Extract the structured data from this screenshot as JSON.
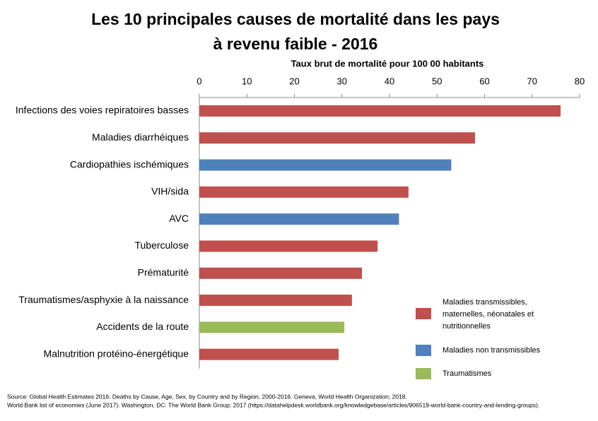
{
  "chart_data": {
    "type": "bar",
    "orientation": "horizontal",
    "title": [
      "Les 10 principales causes de mortalité dans les pays",
      "à revenu faible - 2016"
    ],
    "x_label": "Taux brut de mortalité pour 100 00 habitants",
    "categories": [
      "Infections des voies repiratoires basses",
      "Maladies diarrhéiques",
      "Cardiopathies ischémiques",
      "VIH/sida",
      "AVC",
      "Tuberculose",
      "Prématurité",
      "Traumatismes/asphyxie à la naissance",
      "Accidents de la route",
      "Malnutrition protéino-énergétique"
    ],
    "series": [
      {
        "name": "Maladies transmissibles, maternelles, néonatales et nutritionnelles",
        "color": "#c0504d",
        "values": [
          76,
          58,
          null,
          44,
          null,
          37.5,
          34.2,
          32.1,
          null,
          29.3
        ]
      },
      {
        "name": "Maladies non transmissibles",
        "color": "#4f81bd",
        "values": [
          null,
          null,
          53,
          null,
          42,
          null,
          null,
          null,
          null,
          null
        ]
      },
      {
        "name": "Traumatismes",
        "color": "#9bbb59",
        "values": [
          null,
          null,
          null,
          null,
          null,
          null,
          null,
          null,
          30.5,
          null
        ]
      }
    ],
    "xlim": [
      0,
      80
    ],
    "xticks": [
      0,
      10,
      20,
      30,
      40,
      50,
      60,
      70,
      80
    ],
    "axis_position": "top",
    "source": [
      "Source: Global Health Estimates 2016: Deaths by Cause, Age, Sex, by Country and by Region, 2000-2016. Geneva, World Health Organization; 2018.",
      "World Bank list of economies (June 2017). Washington, DC: The World Bank Group; 2017 (https://datahelpdesk.worldbank.org/knowledgebase/articles/906519-world-bank-country-and-lending-groups)."
    ]
  }
}
